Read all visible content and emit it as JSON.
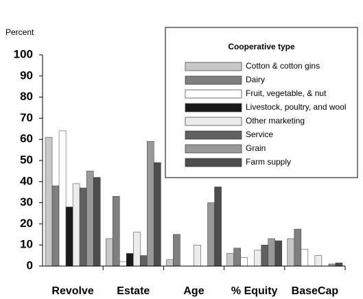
{
  "chart_data": {
    "type": "bar",
    "y_label": "Percent",
    "legend_title": "Cooperative type",
    "legend": "upper right",
    "categories": [
      "Revolve",
      "Estate",
      "Age",
      "% Equity",
      "BaseCap"
    ],
    "ylim": [
      0,
      100
    ],
    "yticks": [
      0,
      10,
      20,
      30,
      40,
      50,
      60,
      70,
      80,
      90,
      100
    ],
    "series": [
      {
        "name": "Cotton & cotton gins",
        "color": "#c8c8c8",
        "values": [
          61,
          13,
          3,
          6,
          13
        ]
      },
      {
        "name": "Dairy",
        "color": "#7f7f7f",
        "values": [
          38,
          33,
          15,
          8.5,
          17.5
        ]
      },
      {
        "name": "Fruit, vegetable, & nut",
        "color": "#ffffff",
        "values": [
          64,
          2,
          0,
          4,
          8
        ]
      },
      {
        "name": "Livestock, poultry, and wool",
        "color": "#1a1a1a",
        "values": [
          28,
          6,
          0,
          0,
          0
        ]
      },
      {
        "name": "Other marketing",
        "color": "#ececec",
        "values": [
          39,
          16,
          10,
          7.5,
          5
        ]
      },
      {
        "name": "Service",
        "color": "#616161",
        "values": [
          37,
          5,
          0,
          10,
          0
        ]
      },
      {
        "name": "Grain",
        "color": "#999999",
        "values": [
          45,
          59,
          30,
          13,
          1
        ]
      },
      {
        "name": "Farm supply",
        "color": "#4d4d4d",
        "values": [
          42,
          49,
          37.5,
          12,
          1.5
        ]
      }
    ]
  }
}
